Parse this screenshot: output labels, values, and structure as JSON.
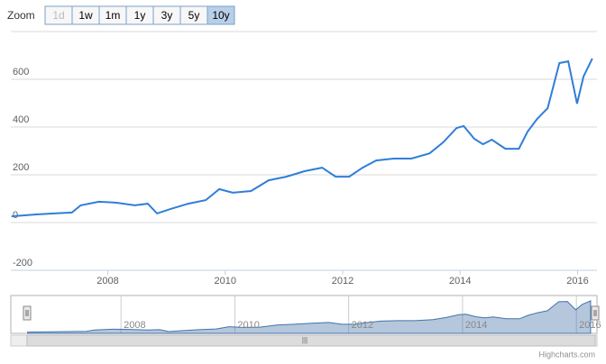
{
  "range_selector": {
    "label": "Zoom",
    "buttons": [
      "1d",
      "1w",
      "1m",
      "1y",
      "3y",
      "5y",
      "10y"
    ],
    "selected": 6,
    "disabled": [
      0
    ]
  },
  "credits": "Highcharts.com",
  "chart_data": {
    "type": "line",
    "color": "#2f7ed8",
    "grid": true,
    "x": [
      2006.36,
      2006.78,
      2007.09,
      2007.39,
      2007.54,
      2007.85,
      2008.15,
      2008.46,
      2008.68,
      2008.84,
      2009.07,
      2009.37,
      2009.67,
      2009.9,
      2010.13,
      2010.44,
      2010.74,
      2011.04,
      2011.35,
      2011.65,
      2011.88,
      2012.11,
      2012.34,
      2012.57,
      2012.87,
      2013.17,
      2013.48,
      2013.71,
      2013.94,
      2014.06,
      2014.24,
      2014.39,
      2014.54,
      2014.77,
      2015.0,
      2015.15,
      2015.31,
      2015.49,
      2015.69,
      2015.84,
      2015.99,
      2016.1,
      2016.25
    ],
    "values": [
      26,
      34,
      38,
      42,
      72,
      87,
      83,
      72,
      79,
      38,
      57,
      79,
      94,
      140,
      125,
      132,
      177,
      192,
      215,
      230,
      192,
      192,
      230,
      260,
      268,
      268,
      290,
      336,
      396,
      404,
      351,
      328,
      347,
      309,
      309,
      381,
      434,
      479,
      668,
      675,
      498,
      611,
      687
    ],
    "xlim": [
      2006.35,
      2016.33
    ],
    "xticks": [
      2008,
      2010,
      2012,
      2014,
      2016
    ],
    "ylim": [
      -200,
      800
    ],
    "yticks": [
      -200,
      0,
      200,
      400,
      600
    ]
  }
}
